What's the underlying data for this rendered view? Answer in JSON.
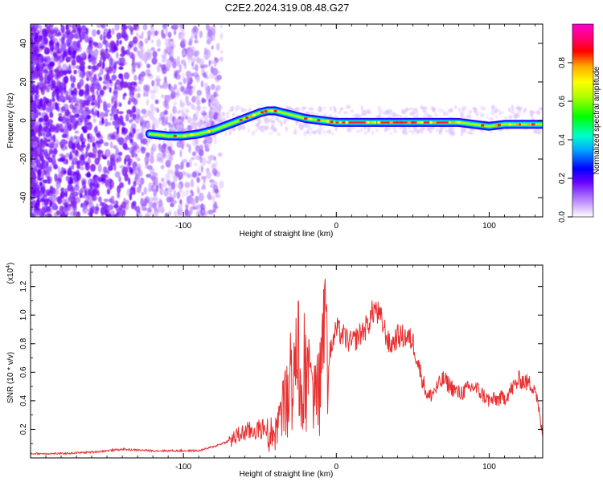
{
  "title": "C2E2.2024.319.08.48.G27",
  "chart_data": [
    {
      "type": "heatmap",
      "xlabel": "Height of straight line (km)",
      "ylabel": "Frequency (Hz)",
      "xlim": [
        -200,
        135
      ],
      "ylim": [
        -50,
        50
      ],
      "xticks": [
        -100,
        0,
        100
      ],
      "yticks": [
        -40,
        -20,
        0,
        20,
        40
      ],
      "colorbar": {
        "label": "Normalized spectral amplitude",
        "range": [
          0,
          1
        ],
        "ticks": [
          0.0,
          0.2,
          0.4,
          0.6,
          0.8
        ],
        "colors": [
          "#ffffff",
          "#d8b8ff",
          "#9b59ff",
          "#6a00ff",
          "#0000ff",
          "#00aaff",
          "#00ffcc",
          "#00ff00",
          "#aaff00",
          "#ffff00",
          "#ffaa00",
          "#ff0000",
          "#ff0077",
          "#ff00cc"
        ]
      },
      "ridge": {
        "x": [
          -122,
          -110,
          -100,
          -90,
          -80,
          -70,
          -60,
          -50,
          -45,
          -40,
          -35,
          -30,
          -20,
          -10,
          0,
          10,
          20,
          40,
          60,
          70,
          80,
          90,
          100,
          110,
          120,
          135
        ],
        "y": [
          -7,
          -8,
          -8,
          -7,
          -5,
          -2,
          1,
          4,
          5,
          5,
          4,
          3,
          1,
          0,
          -1,
          -1,
          -1,
          -1,
          -1,
          -1,
          -1,
          -2,
          -3,
          -2,
          -2,
          -2
        ]
      }
    },
    {
      "type": "line",
      "xlabel": "Height of straight line (km)",
      "ylabel": "SNR (10 * v/v)",
      "yscale_label": "(x10",
      "yscale_exp": "4",
      "xlim": [
        -200,
        135
      ],
      "ylim": [
        0,
        1.35
      ],
      "xticks": [
        -100,
        0,
        100
      ],
      "yticks": [
        0.2,
        0.4,
        0.6,
        0.8,
        1.0,
        1.2
      ],
      "series": [
        {
          "color": "#e83030",
          "x": [
            -200,
            -180,
            -160,
            -140,
            -120,
            -100,
            -90,
            -80,
            -70,
            -60,
            -50,
            -40,
            -35,
            -30,
            -25,
            -20,
            -15,
            -10,
            -8,
            -5,
            0,
            10,
            20,
            25,
            30,
            35,
            40,
            45,
            50,
            55,
            60,
            65,
            70,
            75,
            80,
            90,
            100,
            110,
            120,
            130,
            135
          ],
          "y": [
            0.03,
            0.03,
            0.04,
            0.06,
            0.05,
            0.05,
            0.05,
            0.08,
            0.12,
            0.18,
            0.2,
            0.22,
            0.45,
            0.75,
            0.95,
            0.9,
            0.55,
            0.8,
            1.35,
            0.7,
            0.9,
            0.8,
            0.92,
            1.05,
            0.95,
            0.78,
            0.85,
            0.85,
            0.82,
            0.6,
            0.42,
            0.48,
            0.55,
            0.5,
            0.45,
            0.5,
            0.4,
            0.42,
            0.55,
            0.5,
            0.15
          ]
        }
      ]
    }
  ]
}
